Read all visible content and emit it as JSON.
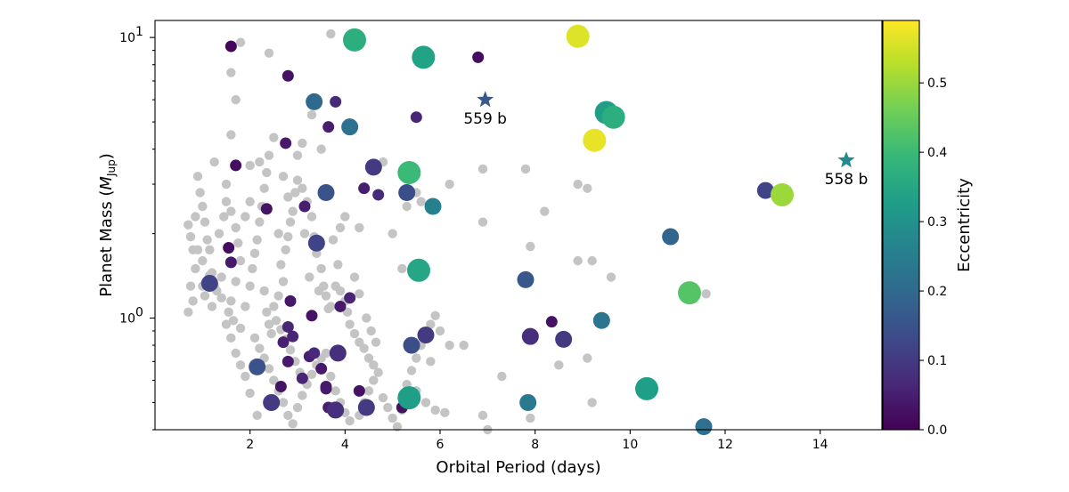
{
  "chart_data": {
    "type": "scatter",
    "xlabel": "Orbital Period (days)",
    "ylabel_main": "Planet Mass (",
    "ylabel_sym": "M",
    "ylabel_sub": "Jup",
    "ylabel_close": ")",
    "xlim": [
      0,
      15.3
    ],
    "ylim": [
      0.4,
      11.5
    ],
    "yscale": "log",
    "x_ticks": [
      2,
      4,
      6,
      8,
      10,
      12,
      14
    ],
    "x_tick_labels": [
      "2",
      "4",
      "6",
      "8",
      "10",
      "12",
      "14"
    ],
    "y_major_ticks": [
      1,
      10
    ],
    "y_major_labels": [
      {
        "base": "10",
        "exp": "0"
      },
      {
        "base": "10",
        "exp": "1"
      }
    ],
    "y_minor_ticks": [
      0.4,
      0.5,
      0.6,
      0.7,
      0.8,
      0.9,
      2,
      3,
      4,
      5,
      6,
      7,
      8,
      9
    ],
    "grid": false,
    "colorbar": {
      "label": "Eccentricity",
      "range": [
        0,
        0.59
      ],
      "ticks": [
        0.0,
        0.1,
        0.2,
        0.3,
        0.4,
        0.5
      ],
      "tick_labels": [
        "0.0",
        "0.1",
        "0.2",
        "0.3",
        "0.4",
        "0.5"
      ],
      "colormap": "viridis",
      "colors": [
        "#440154",
        "#482878",
        "#3e4a89",
        "#31688e",
        "#26828e",
        "#1f9e89",
        "#35b779",
        "#6ece58",
        "#b5de2b",
        "#fde725"
      ]
    },
    "background_points_color": "#c4c4c4",
    "background_points": [
      [
        0.7,
        2.15
      ],
      [
        0.75,
        1.95
      ],
      [
        0.8,
        1.75
      ],
      [
        0.85,
        1.5
      ],
      [
        0.75,
        1.3
      ],
      [
        0.8,
        1.15
      ],
      [
        0.7,
        1.05
      ],
      [
        0.9,
        3.2
      ],
      [
        0.95,
        2.8
      ],
      [
        1.0,
        2.5
      ],
      [
        1.05,
        2.2
      ],
      [
        1.1,
        1.9
      ],
      [
        1.15,
        1.75
      ],
      [
        1.2,
        1.45
      ],
      [
        1.0,
        1.3
      ],
      [
        1.05,
        1.2
      ],
      [
        1.2,
        1.1
      ],
      [
        1.3,
        1.25
      ],
      [
        1.4,
        1.4
      ],
      [
        1.35,
        2.0
      ],
      [
        1.45,
        2.3
      ],
      [
        1.5,
        2.6
      ],
      [
        1.25,
        3.6
      ],
      [
        1.6,
        2.4
      ],
      [
        1.7,
        2.1
      ],
      [
        1.75,
        1.85
      ],
      [
        1.8,
        1.6
      ],
      [
        1.7,
        1.35
      ],
      [
        1.6,
        1.15
      ],
      [
        1.55,
        1.05
      ],
      [
        1.65,
        0.98
      ],
      [
        1.8,
        0.92
      ],
      [
        1.9,
        1.1
      ],
      [
        2.0,
        1.3
      ],
      [
        2.05,
        1.5
      ],
      [
        2.1,
        1.7
      ],
      [
        2.15,
        1.9
      ],
      [
        2.2,
        2.2
      ],
      [
        2.25,
        2.5
      ],
      [
        2.3,
        2.9
      ],
      [
        2.35,
        3.3
      ],
      [
        2.4,
        3.8
      ],
      [
        2.5,
        4.4
      ],
      [
        2.2,
        3.6
      ],
      [
        2.0,
        2.6
      ],
      [
        1.9,
        2.3
      ],
      [
        2.3,
        1.25
      ],
      [
        2.35,
        1.05
      ],
      [
        2.4,
        0.95
      ],
      [
        2.45,
        0.88
      ],
      [
        2.5,
        1.1
      ],
      [
        2.6,
        1.2
      ],
      [
        2.7,
        1.35
      ],
      [
        2.65,
        1.55
      ],
      [
        2.75,
        1.75
      ],
      [
        2.8,
        1.95
      ],
      [
        2.85,
        2.2
      ],
      [
        2.9,
        2.4
      ],
      [
        2.95,
        2.8
      ],
      [
        3.0,
        3.1
      ],
      [
        3.1,
        2.9
      ],
      [
        3.2,
        2.6
      ],
      [
        3.3,
        2.3
      ],
      [
        3.35,
        1.95
      ],
      [
        3.4,
        1.7
      ],
      [
        3.5,
        1.5
      ],
      [
        3.55,
        1.3
      ],
      [
        3.6,
        1.2
      ],
      [
        3.7,
        1.1
      ],
      [
        3.8,
        1.3
      ],
      [
        3.9,
        1.25
      ],
      [
        4.0,
        1.15
      ],
      [
        4.05,
        1.05
      ],
      [
        4.1,
        0.95
      ],
      [
        4.2,
        0.88
      ],
      [
        4.3,
        0.82
      ],
      [
        4.4,
        0.78
      ],
      [
        4.5,
        0.72
      ],
      [
        4.6,
        0.68
      ],
      [
        4.7,
        0.64
      ],
      [
        2.1,
        0.85
      ],
      [
        2.2,
        0.78
      ],
      [
        2.3,
        0.72
      ],
      [
        2.4,
        0.66
      ],
      [
        2.5,
        0.6
      ],
      [
        2.6,
        0.55
      ],
      [
        2.7,
        0.5
      ],
      [
        2.8,
        0.45
      ],
      [
        2.9,
        0.42
      ],
      [
        3.0,
        0.48
      ],
      [
        3.1,
        0.53
      ],
      [
        3.2,
        0.58
      ],
      [
        3.3,
        0.63
      ],
      [
        3.4,
        0.68
      ],
      [
        3.5,
        0.72
      ],
      [
        3.6,
        0.75
      ],
      [
        3.7,
        0.62
      ],
      [
        3.8,
        0.55
      ],
      [
        3.9,
        0.5
      ],
      [
        4.0,
        0.46
      ],
      [
        4.1,
        0.43
      ],
      [
        4.3,
        0.45
      ],
      [
        4.4,
        0.5
      ],
      [
        4.5,
        0.55
      ],
      [
        4.6,
        0.6
      ],
      [
        4.8,
        0.52
      ],
      [
        4.9,
        0.48
      ],
      [
        5.0,
        0.44
      ],
      [
        5.1,
        0.41
      ],
      [
        5.2,
        0.47
      ],
      [
        5.3,
        0.58
      ],
      [
        5.4,
        0.65
      ],
      [
        5.5,
        0.72
      ],
      [
        5.6,
        0.8
      ],
      [
        5.7,
        0.88
      ],
      [
        5.8,
        0.95
      ],
      [
        5.9,
        1.02
      ],
      [
        6.0,
        0.9
      ],
      [
        6.2,
        0.8
      ],
      [
        5.5,
        0.55
      ],
      [
        5.7,
        0.5
      ],
      [
        5.9,
        0.47
      ],
      [
        6.1,
        0.46
      ],
      [
        5.2,
        1.5
      ],
      [
        5.3,
        2.5
      ],
      [
        5.5,
        2.8
      ],
      [
        6.2,
        3.0
      ],
      [
        3.1,
        4.2
      ],
      [
        3.3,
        5.3
      ],
      [
        3.0,
        3.8
      ],
      [
        3.5,
        4.0
      ],
      [
        2.7,
        3.2
      ],
      [
        2.8,
        2.7
      ],
      [
        1.6,
        7.5
      ],
      [
        1.8,
        9.6
      ],
      [
        2.4,
        8.8
      ],
      [
        3.7,
        10.3
      ],
      [
        1.7,
        6.0
      ],
      [
        1.6,
        4.5
      ],
      [
        1.5,
        3.0
      ],
      [
        2.0,
        3.5
      ],
      [
        2.6,
        2.0
      ],
      [
        3.15,
        2.0
      ],
      [
        3.25,
        1.4
      ],
      [
        3.45,
        1.25
      ],
      [
        3.65,
        1.08
      ],
      [
        4.45,
        1.0
      ],
      [
        4.55,
        0.9
      ],
      [
        4.65,
        0.82
      ],
      [
        2.55,
        0.98
      ],
      [
        2.65,
        0.91
      ],
      [
        2.75,
        0.84
      ],
      [
        2.85,
        0.77
      ],
      [
        2.95,
        0.7
      ],
      [
        3.05,
        0.64
      ],
      [
        3.15,
        0.6
      ],
      [
        2.45,
        0.5
      ],
      [
        2.15,
        0.45
      ],
      [
        2.0,
        0.54
      ],
      [
        1.9,
        0.62
      ],
      [
        1.8,
        0.68
      ],
      [
        1.7,
        0.75
      ],
      [
        1.6,
        0.85
      ],
      [
        1.5,
        0.95
      ],
      [
        1.4,
        1.18
      ],
      [
        1.25,
        1.3
      ],
      [
        1.15,
        1.42
      ],
      [
        1.0,
        1.6
      ],
      [
        0.9,
        1.75
      ],
      [
        0.85,
        2.3
      ],
      [
        4.8,
        3.6
      ],
      [
        5.0,
        2.0
      ],
      [
        5.6,
        2.6
      ],
      [
        4.3,
        2.1
      ],
      [
        4.0,
        2.3
      ],
      [
        3.9,
        2.1
      ],
      [
        3.75,
        1.9
      ],
      [
        3.85,
        1.55
      ],
      [
        4.2,
        1.4
      ],
      [
        4.3,
        1.22
      ],
      [
        6.9,
        3.4
      ],
      [
        6.9,
        2.2
      ],
      [
        7.8,
        3.4
      ],
      [
        8.2,
        2.4
      ],
      [
        7.9,
        1.8
      ],
      [
        8.9,
        1.6
      ],
      [
        9.2,
        1.6
      ],
      [
        8.9,
        3.0
      ],
      [
        9.1,
        2.9
      ],
      [
        9.6,
        1.4
      ],
      [
        8.5,
        0.68
      ],
      [
        9.1,
        0.72
      ],
      [
        9.2,
        0.5
      ],
      [
        7.3,
        0.62
      ],
      [
        7.9,
        0.44
      ],
      [
        7.0,
        0.4
      ],
      [
        6.9,
        0.45
      ],
      [
        11.6,
        1.22
      ],
      [
        6.5,
        0.8
      ],
      [
        5.8,
        0.7
      ]
    ],
    "highlight_points": [
      {
        "x": 1.6,
        "y": 9.3,
        "e": 0.01,
        "size": "small"
      },
      {
        "x": 1.7,
        "y": 3.5,
        "e": 0.02,
        "size": "small"
      },
      {
        "x": 1.55,
        "y": 1.78,
        "e": 0.02,
        "size": "small"
      },
      {
        "x": 1.6,
        "y": 1.58,
        "e": 0.04,
        "size": "small"
      },
      {
        "x": 2.8,
        "y": 7.3,
        "e": 0.03,
        "size": "small"
      },
      {
        "x": 2.75,
        "y": 4.2,
        "e": 0.04,
        "size": "small"
      },
      {
        "x": 2.35,
        "y": 2.45,
        "e": 0.03,
        "size": "small"
      },
      {
        "x": 3.15,
        "y": 2.5,
        "e": 0.05,
        "size": "small"
      },
      {
        "x": 3.65,
        "y": 4.8,
        "e": 0.05,
        "size": "small"
      },
      {
        "x": 3.8,
        "y": 5.9,
        "e": 0.07,
        "size": "small"
      },
      {
        "x": 3.35,
        "y": 5.9,
        "e": 0.2,
        "size": "medium"
      },
      {
        "x": 4.1,
        "y": 4.8,
        "e": 0.22,
        "size": "medium"
      },
      {
        "x": 4.2,
        "y": 9.8,
        "e": 0.37,
        "size": "large"
      },
      {
        "x": 5.65,
        "y": 8.5,
        "e": 0.34,
        "size": "large"
      },
      {
        "x": 6.8,
        "y": 8.5,
        "e": 0.02,
        "size": "small"
      },
      {
        "x": 8.9,
        "y": 10.1,
        "e": 0.56,
        "size": "large"
      },
      {
        "x": 5.5,
        "y": 5.2,
        "e": 0.06,
        "size": "small"
      },
      {
        "x": 4.6,
        "y": 3.45,
        "e": 0.1,
        "size": "medium"
      },
      {
        "x": 5.35,
        "y": 3.3,
        "e": 0.4,
        "size": "large"
      },
      {
        "x": 4.4,
        "y": 2.9,
        "e": 0.05,
        "size": "small"
      },
      {
        "x": 4.7,
        "y": 2.75,
        "e": 0.07,
        "size": "small"
      },
      {
        "x": 3.6,
        "y": 2.8,
        "e": 0.15,
        "size": "medium"
      },
      {
        "x": 5.3,
        "y": 2.8,
        "e": 0.14,
        "size": "medium"
      },
      {
        "x": 5.85,
        "y": 2.5,
        "e": 0.26,
        "size": "medium"
      },
      {
        "x": 3.4,
        "y": 1.85,
        "e": 0.12,
        "size": "medium"
      },
      {
        "x": 1.15,
        "y": 1.33,
        "e": 0.12,
        "size": "medium"
      },
      {
        "x": 2.85,
        "y": 1.15,
        "e": 0.04,
        "size": "small"
      },
      {
        "x": 4.1,
        "y": 1.18,
        "e": 0.06,
        "size": "small"
      },
      {
        "x": 3.9,
        "y": 1.1,
        "e": 0.04,
        "size": "small"
      },
      {
        "x": 3.3,
        "y": 1.02,
        "e": 0.03,
        "size": "small"
      },
      {
        "x": 2.8,
        "y": 0.93,
        "e": 0.06,
        "size": "small"
      },
      {
        "x": 2.7,
        "y": 0.82,
        "e": 0.05,
        "size": "small"
      },
      {
        "x": 2.9,
        "y": 0.86,
        "e": 0.06,
        "size": "small"
      },
      {
        "x": 2.8,
        "y": 0.7,
        "e": 0.04,
        "size": "small"
      },
      {
        "x": 3.25,
        "y": 0.73,
        "e": 0.05,
        "size": "small"
      },
      {
        "x": 3.35,
        "y": 0.75,
        "e": 0.07,
        "size": "small"
      },
      {
        "x": 3.5,
        "y": 0.66,
        "e": 0.04,
        "size": "small"
      },
      {
        "x": 3.1,
        "y": 0.61,
        "e": 0.06,
        "size": "small"
      },
      {
        "x": 3.6,
        "y": 0.57,
        "e": 0.04,
        "size": "small"
      },
      {
        "x": 3.6,
        "y": 0.56,
        "e": 0.04,
        "size": "small"
      },
      {
        "x": 2.65,
        "y": 0.57,
        "e": 0.03,
        "size": "small"
      },
      {
        "x": 4.3,
        "y": 0.55,
        "e": 0.03,
        "size": "small"
      },
      {
        "x": 3.85,
        "y": 0.75,
        "e": 0.08,
        "size": "medium"
      },
      {
        "x": 2.15,
        "y": 0.67,
        "e": 0.15,
        "size": "medium"
      },
      {
        "x": 2.45,
        "y": 0.5,
        "e": 0.1,
        "size": "medium"
      },
      {
        "x": 3.65,
        "y": 0.48,
        "e": 0.05,
        "size": "small"
      },
      {
        "x": 3.8,
        "y": 0.47,
        "e": 0.08,
        "size": "medium"
      },
      {
        "x": 4.45,
        "y": 0.48,
        "e": 0.1,
        "size": "medium"
      },
      {
        "x": 5.2,
        "y": 0.48,
        "e": 0.03,
        "size": "small"
      },
      {
        "x": 5.35,
        "y": 0.52,
        "e": 0.33,
        "size": "large"
      },
      {
        "x": 5.4,
        "y": 0.8,
        "e": 0.14,
        "size": "medium"
      },
      {
        "x": 5.7,
        "y": 0.87,
        "e": 0.1,
        "size": "medium"
      },
      {
        "x": 5.55,
        "y": 1.48,
        "e": 0.35,
        "size": "large"
      },
      {
        "x": 7.8,
        "y": 1.37,
        "e": 0.16,
        "size": "medium"
      },
      {
        "x": 7.9,
        "y": 0.86,
        "e": 0.08,
        "size": "medium"
      },
      {
        "x": 8.35,
        "y": 0.97,
        "e": 0.03,
        "size": "small"
      },
      {
        "x": 8.6,
        "y": 0.84,
        "e": 0.1,
        "size": "medium"
      },
      {
        "x": 9.4,
        "y": 0.98,
        "e": 0.23,
        "size": "medium"
      },
      {
        "x": 7.85,
        "y": 0.5,
        "e": 0.24,
        "size": "medium"
      },
      {
        "x": 10.35,
        "y": 0.56,
        "e": 0.33,
        "size": "large"
      },
      {
        "x": 11.55,
        "y": 0.41,
        "e": 0.22,
        "size": "medium"
      },
      {
        "x": 10.85,
        "y": 1.95,
        "e": 0.19,
        "size": "medium"
      },
      {
        "x": 11.25,
        "y": 1.23,
        "e": 0.43,
        "size": "large"
      },
      {
        "x": 9.5,
        "y": 5.4,
        "e": 0.33,
        "size": "large"
      },
      {
        "x": 9.65,
        "y": 5.2,
        "e": 0.37,
        "size": "large"
      },
      {
        "x": 9.25,
        "y": 4.3,
        "e": 0.57,
        "size": "large"
      },
      {
        "x": 12.85,
        "y": 2.85,
        "e": 0.12,
        "size": "medium"
      },
      {
        "x": 13.2,
        "y": 2.75,
        "e": 0.5,
        "size": "large"
      }
    ],
    "annotations": [
      {
        "label": "559 b",
        "x": 6.95,
        "y": 6.0,
        "e": 0.16
      },
      {
        "label": "558 b",
        "x": 14.55,
        "y": 3.65,
        "e": 0.28
      }
    ]
  }
}
